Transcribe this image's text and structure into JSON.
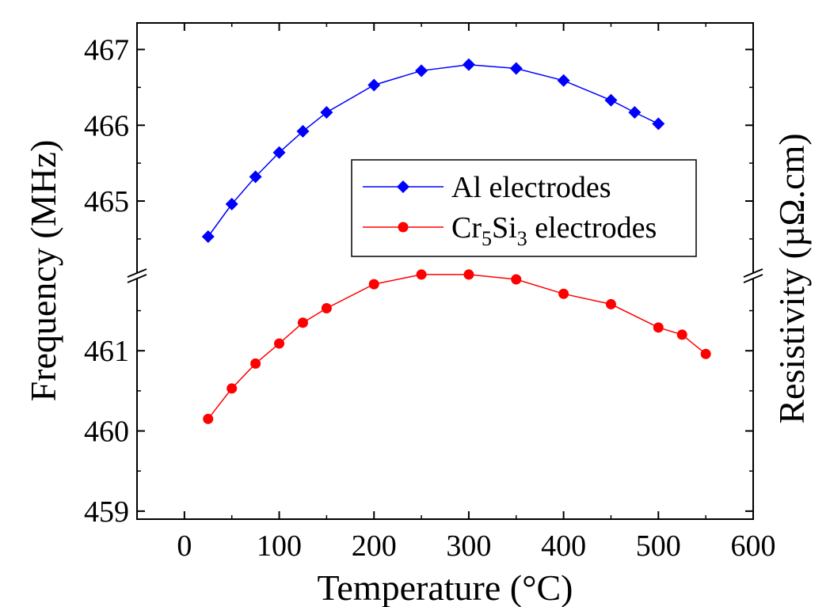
{
  "chart_data": {
    "type": "line",
    "xlabel": "Temperature (°C)",
    "ylabel": "Frequency (MHz)",
    "y2label": "Resistivity (µΩ.cm)",
    "xlim": [
      -50,
      600
    ],
    "xticks": [
      0,
      100,
      200,
      300,
      400,
      500,
      600
    ],
    "y_axis_break": true,
    "y_upper_segment": {
      "ylim": [
        464.05,
        467.35
      ],
      "ticks": [
        465,
        466,
        467
      ]
    },
    "y_lower_segment": {
      "ylim": [
        458.9,
        461.9
      ],
      "ticks": [
        459,
        460,
        461
      ]
    },
    "legend_position": "right-center",
    "series": [
      {
        "name": "Al electrodes",
        "color": "#0000ff",
        "marker": "diamond",
        "segment": "upper",
        "x": [
          25,
          50,
          75,
          100,
          125,
          150,
          200,
          250,
          300,
          350,
          400,
          450,
          475,
          500
        ],
        "y": [
          464.53,
          464.96,
          465.32,
          465.64,
          465.92,
          466.17,
          466.53,
          466.72,
          466.8,
          466.75,
          466.59,
          466.33,
          466.17,
          466.02
        ]
      },
      {
        "name_parts": [
          "Cr",
          "5",
          "Si",
          "3",
          " electrodes"
        ],
        "color": "#ff0000",
        "marker": "circle",
        "segment": "lower",
        "x": [
          25,
          50,
          75,
          100,
          125,
          150,
          200,
          250,
          300,
          350,
          400,
          450,
          500,
          525,
          550
        ],
        "y": [
          460.15,
          460.53,
          460.84,
          461.09,
          461.35,
          461.53,
          461.83,
          461.95,
          461.95,
          461.89,
          461.71,
          461.58,
          461.29,
          461.2,
          460.96
        ]
      }
    ]
  }
}
